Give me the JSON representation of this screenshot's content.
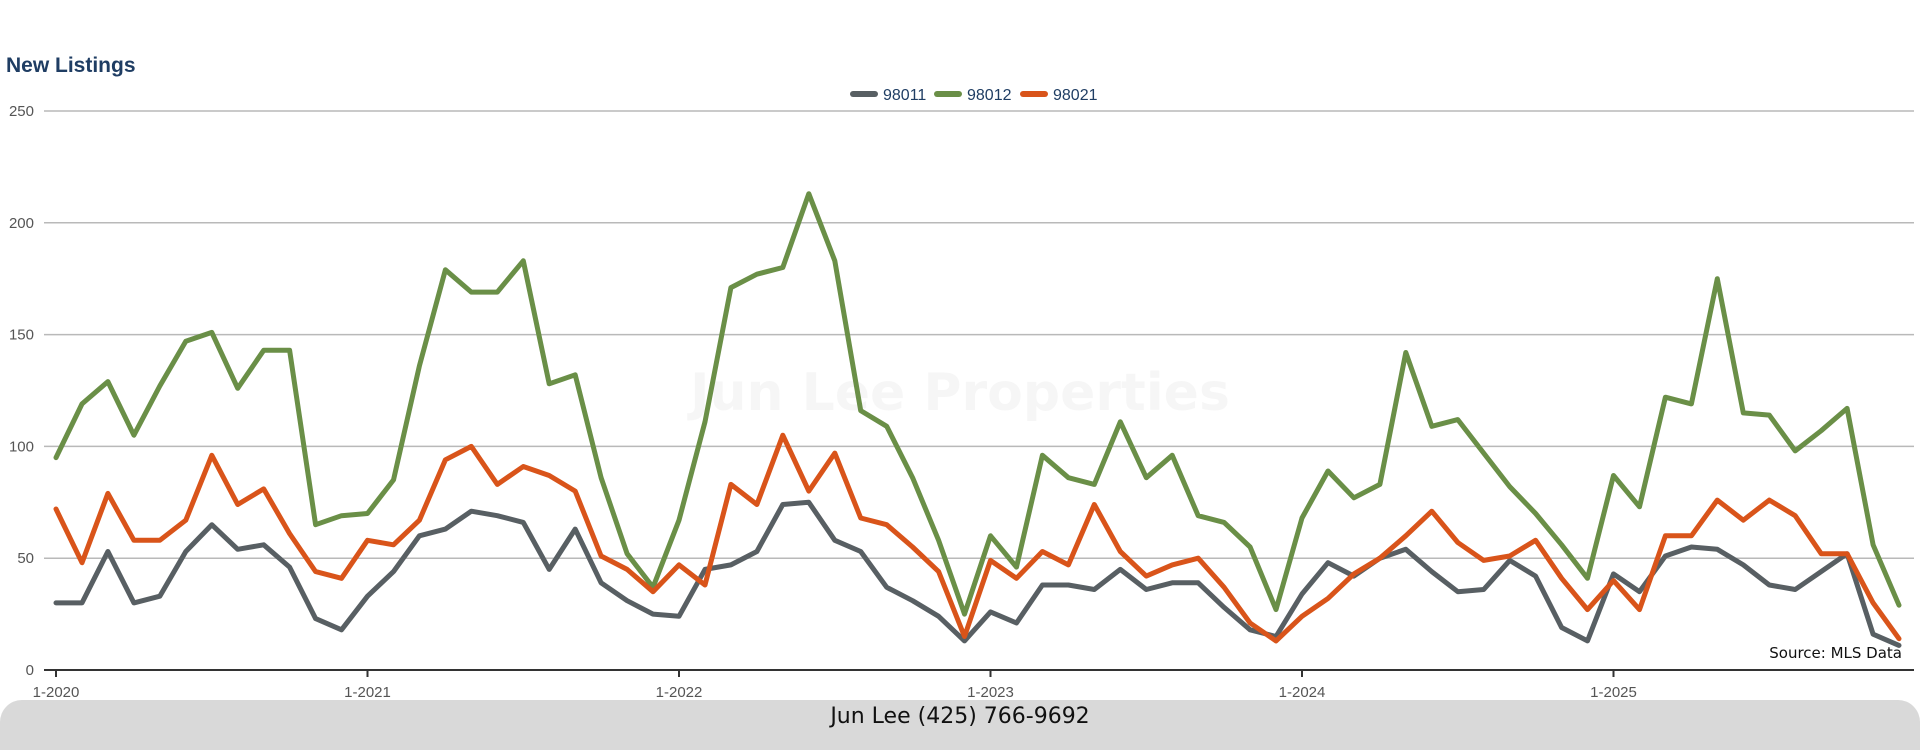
{
  "footer": {
    "contact": "Jun Lee (425) 766-9692"
  },
  "chart_data": {
    "type": "line",
    "title": "New Listings",
    "watermark": "Jun Lee Properties",
    "source": "Source: MLS Data",
    "legend_position": "top-center",
    "grid": true,
    "ylim": [
      0,
      250
    ],
    "yticks": [
      0,
      50,
      100,
      150,
      200,
      250
    ],
    "xticks": [
      "1-2020",
      "1-2021",
      "1-2022",
      "1-2023",
      "1-2024",
      "1-2025"
    ],
    "x_start": "1-2020",
    "points_per_year": 12,
    "series": [
      {
        "name": "98011",
        "color": "#585f63",
        "values": [
          30,
          30,
          53,
          30,
          33,
          53,
          65,
          54,
          56,
          46,
          23,
          18,
          33,
          44,
          60,
          63,
          71,
          69,
          66,
          45,
          63,
          39,
          31,
          25,
          24,
          45,
          47,
          53,
          74,
          75,
          58,
          53,
          37,
          31,
          24,
          13,
          26,
          21,
          38,
          38,
          36,
          45,
          36,
          39,
          39,
          28,
          18,
          15,
          34,
          48,
          42,
          50,
          54,
          44,
          35,
          36,
          49,
          42,
          19,
          13,
          43,
          35,
          51,
          55,
          54,
          47,
          38,
          36,
          44,
          52,
          16,
          11
        ]
      },
      {
        "name": "98012",
        "color": "#6a8f47",
        "values": [
          95,
          119,
          129,
          105,
          127,
          147,
          151,
          126,
          143,
          143,
          65,
          69,
          70,
          85,
          136,
          179,
          169,
          169,
          183,
          128,
          132,
          86,
          52,
          37,
          67,
          111,
          171,
          177,
          180,
          213,
          183,
          116,
          109,
          86,
          58,
          25,
          60,
          46,
          96,
          86,
          83,
          111,
          86,
          96,
          69,
          66,
          55,
          27,
          68,
          89,
          77,
          83,
          142,
          109,
          112,
          97,
          82,
          70,
          56,
          41,
          87,
          73,
          122,
          119,
          175,
          115,
          114,
          98,
          107,
          117,
          56,
          29
        ]
      },
      {
        "name": "98021",
        "color": "#d9541a",
        "values": [
          72,
          48,
          79,
          58,
          58,
          67,
          96,
          74,
          81,
          61,
          44,
          41,
          58,
          56,
          67,
          94,
          100,
          83,
          91,
          87,
          80,
          51,
          45,
          35,
          47,
          38,
          83,
          74,
          105,
          80,
          97,
          68,
          65,
          55,
          44,
          15,
          49,
          41,
          53,
          47,
          74,
          53,
          42,
          47,
          50,
          37,
          21,
          13,
          24,
          32,
          43,
          50,
          60,
          71,
          57,
          49,
          51,
          58,
          41,
          27,
          40,
          27,
          60,
          60,
          76,
          67,
          76,
          69,
          52,
          52,
          30,
          14
        ]
      }
    ]
  }
}
